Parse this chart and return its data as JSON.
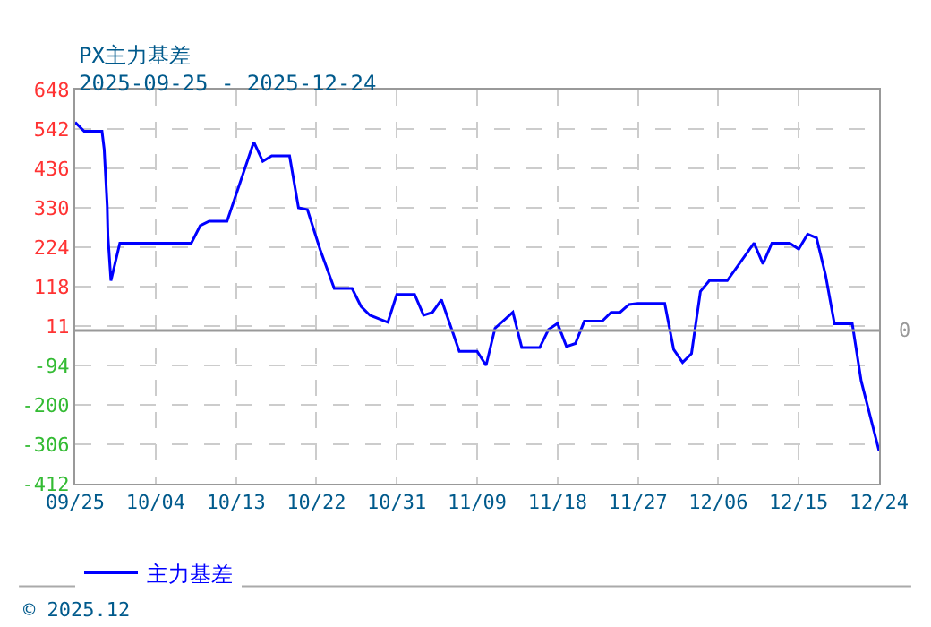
{
  "chart_data": {
    "type": "line",
    "title": "PX主力基差",
    "subtitle": "2025-09-25 - 2025-12-24",
    "x": [
      "2025-09-25",
      "2025-09-26",
      "2025-09-28",
      "2025-09-28T06:00",
      "2025-09-28T14:00",
      "2025-09-28T16:00",
      "2025-09-29",
      "2025-09-30",
      "2025-10-08",
      "2025-10-09",
      "2025-10-10",
      "2025-10-12",
      "2025-10-15",
      "2025-10-16",
      "2025-10-17",
      "2025-10-19",
      "2025-10-20",
      "2025-10-21",
      "2025-10-22T10:00",
      "2025-10-24",
      "2025-10-26",
      "2025-10-27",
      "2025-10-28",
      "2025-10-30",
      "2025-10-31",
      "2025-11-02",
      "2025-11-03",
      "2025-11-04",
      "2025-11-05",
      "2025-11-07",
      "2025-11-09",
      "2025-11-10",
      "2025-11-11",
      "2025-11-13",
      "2025-11-14",
      "2025-11-16",
      "2025-11-17",
      "2025-11-18",
      "2025-11-19",
      "2025-11-20",
      "2025-11-21",
      "2025-11-23",
      "2025-11-24",
      "2025-11-25",
      "2025-11-26",
      "2025-11-27",
      "2025-11-30",
      "2025-12-01",
      "2025-12-02",
      "2025-12-03",
      "2025-12-04",
      "2025-12-05",
      "2025-12-07",
      "2025-12-10",
      "2025-12-11",
      "2025-12-12",
      "2025-12-14",
      "2025-12-15",
      "2025-12-16",
      "2025-12-17",
      "2025-12-18",
      "2025-12-19",
      "2025-12-21",
      "2025-12-22",
      "2025-12-24"
    ],
    "series": [
      {
        "name": "主力基差",
        "color": "#0000ff",
        "values": [
          560,
          536,
          536,
          487,
          335,
          254,
          134,
          235,
          235,
          282,
          294,
          294,
          507,
          455,
          470,
          470,
          330,
          325,
          218,
          113,
          113,
          65,
          41,
          22,
          97,
          97,
          41,
          49,
          83,
          -56,
          -56,
          -94,
          6,
          49,
          -46,
          -46,
          3,
          19,
          -43,
          -35,
          25,
          25,
          49,
          49,
          70,
          73,
          73,
          -51,
          -86,
          -62,
          105,
          134,
          134,
          235,
          179,
          235,
          235,
          219,
          259,
          249,
          150,
          18,
          18,
          -136,
          -324
        ]
      }
    ],
    "ylim": [
      -412,
      648
    ],
    "yticks": [
      -412,
      -306,
      -200,
      -94,
      11,
      118,
      224,
      330,
      436,
      542,
      648
    ],
    "xlim": [
      "2025-09-25",
      "2025-12-24"
    ],
    "xticks": [
      {
        "value": "2025-09-25",
        "label": "09/25"
      },
      {
        "value": "2025-10-04",
        "label": "10/04"
      },
      {
        "value": "2025-10-13",
        "label": "10/13"
      },
      {
        "value": "2025-10-22",
        "label": "10/22"
      },
      {
        "value": "2025-10-31",
        "label": "10/31"
      },
      {
        "value": "2025-11-09",
        "label": "11/09"
      },
      {
        "value": "2025-11-18",
        "label": "11/18"
      },
      {
        "value": "2025-11-27",
        "label": "11/27"
      },
      {
        "value": "2025-12-06",
        "label": "12/06"
      },
      {
        "value": "2025-12-15",
        "label": "12/15"
      },
      {
        "value": "2025-12-24",
        "label": "12/24"
      }
    ],
    "ref_lines": [
      {
        "axis": "y",
        "value": 0,
        "label": "0",
        "color": "#999999"
      }
    ],
    "annotations": [
      "© 2025.12"
    ],
    "grid": true,
    "legend": "bottom left",
    "marker": "none",
    "line_style": "solid"
  }
}
